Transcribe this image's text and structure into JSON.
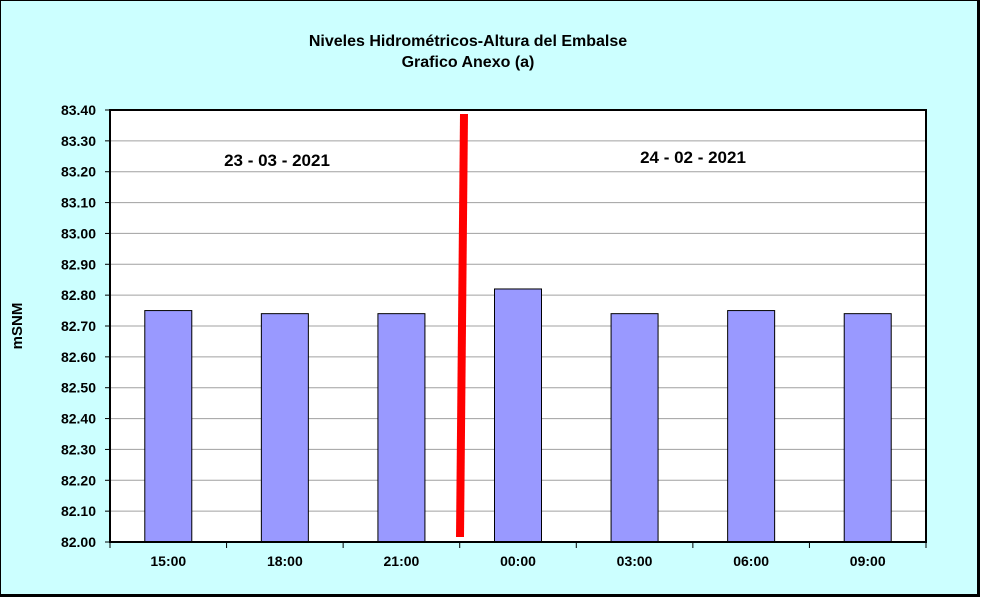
{
  "colors": {
    "background": "#CCFFFF",
    "plot_area": "#FFFFFF",
    "bar_fill": "#9999FF",
    "bar_stroke": "#000000",
    "gridline": "#A0A0A0",
    "divider": "#FF0000"
  },
  "chart_data": {
    "type": "bar",
    "title": "Niveles Hidrométricos-Altura del Embalse",
    "subtitle": "Grafico Anexo (a)",
    "xlabel": "",
    "ylabel": "mSNM",
    "categories": [
      "15:00",
      "18:00",
      "21:00",
      "00:00",
      "03:00",
      "06:00",
      "09:00"
    ],
    "values": [
      82.75,
      82.74,
      82.74,
      82.82,
      82.74,
      82.75,
      82.74
    ],
    "ylim": [
      82.0,
      83.4
    ],
    "ystep": 0.1,
    "ytick_labels": [
      "82.00",
      "82.10",
      "82.20",
      "82.30",
      "82.40",
      "82.50",
      "82.60",
      "82.70",
      "82.80",
      "82.90",
      "83.00",
      "83.10",
      "83.20",
      "83.30",
      "83.40"
    ],
    "grid": true,
    "legend": "none",
    "annotations": [
      {
        "text": "23 - 03 - 2021",
        "region": "left"
      },
      {
        "text": "24 - 02 - 2021",
        "region": "right"
      }
    ],
    "divider_after_category_index": 2
  }
}
